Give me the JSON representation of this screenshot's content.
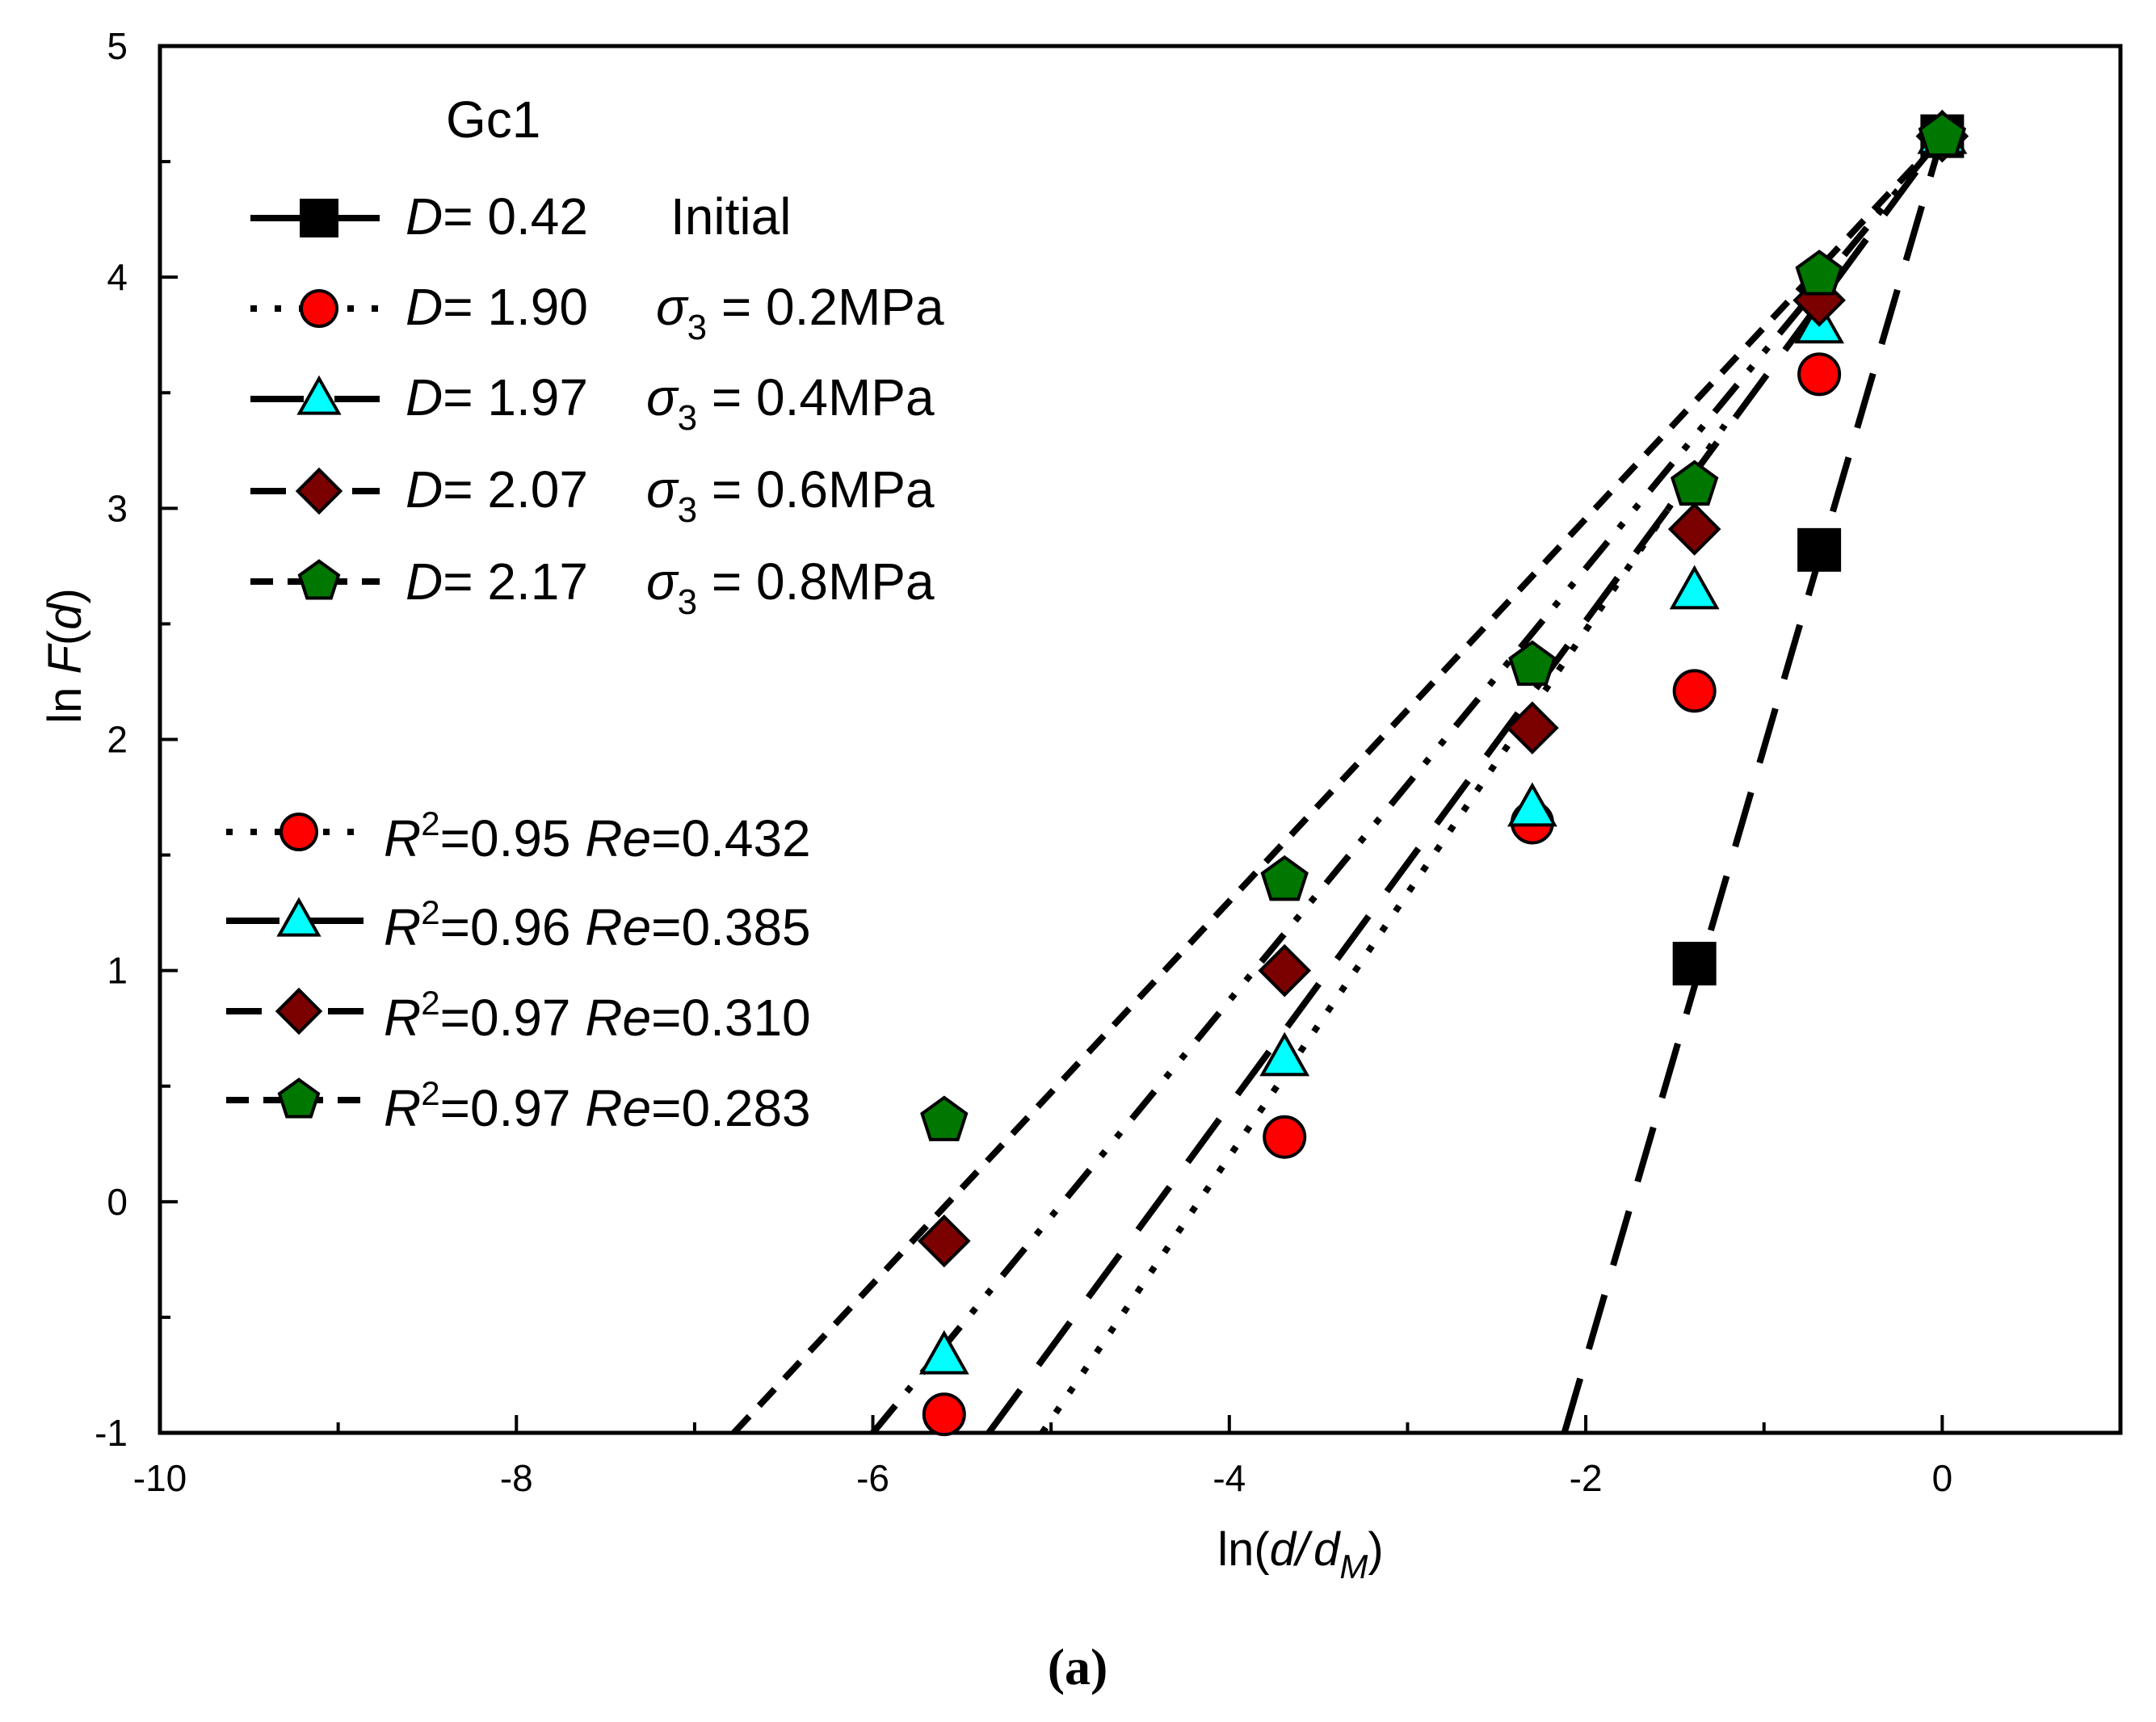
{
  "chart_data": {
    "type": "scatter",
    "panel_title": "Gc1",
    "caption": "(a)",
    "xlabel": {
      "prefix": "ln(",
      "d": "d",
      "slash": "/",
      "dM": "d",
      "sub": "M",
      "suffix": ")"
    },
    "ylabel": {
      "prefix": "ln ",
      "F": "F",
      "open": "(",
      "d": "d",
      "close": ")"
    },
    "xlim": [
      -10,
      1
    ],
    "ylim": [
      -1,
      5
    ],
    "xticks": [
      -10,
      -8,
      -6,
      -4,
      -2,
      0
    ],
    "xtick_labels": [
      "-10",
      "-8",
      "-6",
      "-4",
      "-2",
      "0"
    ],
    "yticks": [
      -1,
      0,
      1,
      2,
      3,
      4,
      5
    ],
    "ytick_labels": [
      "-1",
      "0",
      "1",
      "2",
      "3",
      "4",
      "5"
    ],
    "series": [
      {
        "name": "Initial",
        "marker": "square",
        "color": "#000000",
        "x": [
          -1.39,
          -0.69,
          0
        ],
        "y": [
          1.03,
          2.82,
          4.61
        ],
        "fit_line": {
          "x": [
            -2.12,
            0
          ],
          "y": [
            -1,
            4.61
          ],
          "dash": "70 38"
        }
      },
      {
        "name": "σ3 = 0.2MPa",
        "marker": "circle",
        "color": "#ff0000",
        "x": [
          -5.6,
          -3.69,
          -2.3,
          -1.39,
          -0.69,
          0
        ],
        "y": [
          -0.92,
          0.28,
          1.64,
          2.21,
          3.58,
          4.61
        ],
        "fit_line": {
          "x": [
            -5.05,
            -1.22
          ],
          "y": [
            -1,
            3.36
          ],
          "dash": "8 22"
        }
      },
      {
        "name": "σ3 = 0.4MPa",
        "marker": "triangle",
        "color": "#00ffff",
        "x": [
          -5.6,
          -3.69,
          -2.3,
          -1.39,
          -0.69,
          0
        ],
        "y": [
          -0.67,
          0.62,
          1.7,
          2.64,
          3.79,
          4.61
        ],
        "fit_line": {
          "x": [
            -5.35,
            0
          ],
          "y": [
            -1,
            4.61
          ],
          "dash": "66 38"
        }
      },
      {
        "name": "σ3 = 0.6MPa",
        "marker": "diamond",
        "color": "#7b0000",
        "x": [
          -5.6,
          -3.69,
          -2.3,
          -1.39,
          -0.69,
          0
        ],
        "y": [
          -0.17,
          1.0,
          2.05,
          2.91,
          3.9,
          4.61
        ],
        "fit_line": {
          "x": [
            -6.0,
            0
          ],
          "y": [
            -1,
            4.61
          ],
          "dash": "44 22 8 22 8 22"
        }
      },
      {
        "name": "σ3 = 0.8MPa",
        "marker": "pentagon",
        "color": "#007700",
        "x": [
          -5.6,
          -3.69,
          -2.3,
          -1.39,
          -0.69,
          0
        ],
        "y": [
          0.35,
          1.39,
          2.32,
          3.1,
          4.01,
          4.61
        ],
        "fit_line": {
          "x": [
            -6.78,
            0
          ],
          "y": [
            -1,
            4.61
          ],
          "dash": "28 18"
        }
      }
    ],
    "legend_upper": [
      {
        "D": "D",
        "eq": "= 0.42",
        "label": "Initial"
      },
      {
        "D": "D",
        "eq": "= 1.90",
        "sigma": "σ",
        "sub": "3",
        "stress": " = 0.2MPa"
      },
      {
        "D": "D",
        "eq": "= 1.97",
        "sigma": "σ",
        "sub": "3",
        "stress": " = 0.4MPa"
      },
      {
        "D": "D",
        "eq": "= 2.07",
        "sigma": "σ",
        "sub": "3",
        "stress": " = 0.6MPa"
      },
      {
        "D": "D",
        "eq": "= 2.17",
        "sigma": "σ",
        "sub": "3",
        "stress": " = 0.8MPa"
      }
    ],
    "legend_lower": [
      {
        "R": "R",
        "sup": "2",
        "r2": "=0.95 ",
        "Re": "Re",
        "re": "=0.432"
      },
      {
        "R": "R",
        "sup": "2",
        "r2": "=0.96 ",
        "Re": "Re",
        "re": "=0.385"
      },
      {
        "R": "R",
        "sup": "2",
        "r2": "=0.97 ",
        "Re": "Re",
        "re": "=0.310"
      },
      {
        "R": "R",
        "sup": "2",
        "r2": "=0.97 ",
        "Re": "Re",
        "re": "=0.283"
      }
    ]
  }
}
